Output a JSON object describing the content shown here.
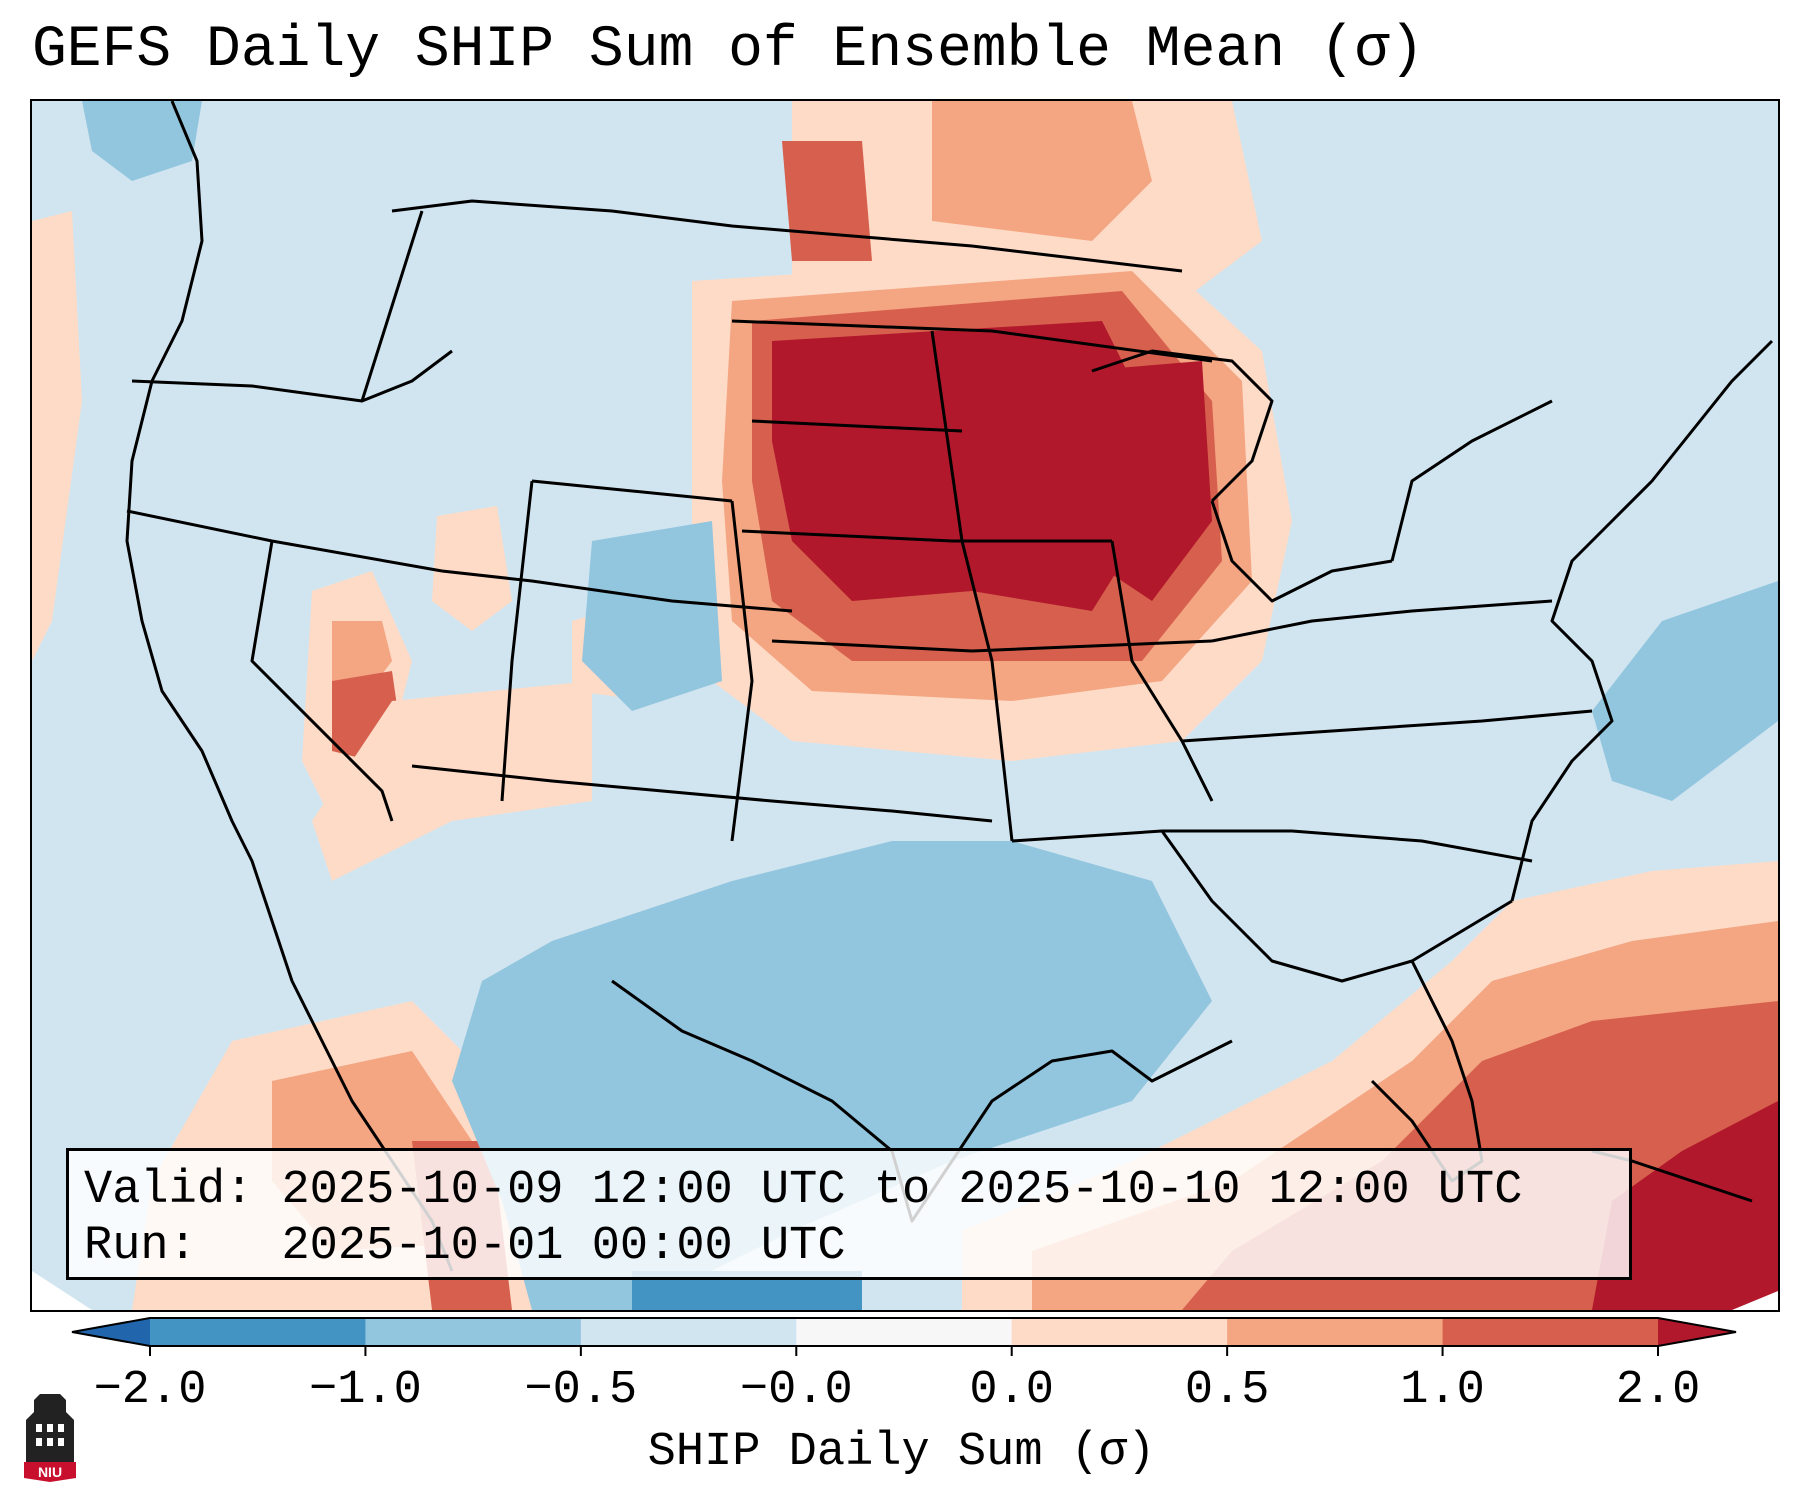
{
  "title": "GEFS Daily SHIP Sum of Ensemble Mean (σ)",
  "info": {
    "valid_label": "Valid:",
    "valid_value": "2025-10-09 12:00 UTC to 2025-10-10 12:00 UTC",
    "run_label": "Run:",
    "run_value": "2025-10-01 00:00 UTC"
  },
  "colorbar": {
    "label": "SHIP Daily Sum (σ)",
    "ticks": [
      "−2.0",
      "−1.0",
      "−0.5",
      "−0.0",
      "0.0",
      "0.5",
      "1.0",
      "2.0"
    ],
    "bins": [
      {
        "range": "< -2.0",
        "color": "#2166ac"
      },
      {
        "range": "-2.0 to -1.0",
        "color": "#4393c3"
      },
      {
        "range": "-1.0 to -0.5",
        "color": "#92c5de"
      },
      {
        "range": "-0.5 to -0.0",
        "color": "#d1e5f0"
      },
      {
        "range": "-0.0 to 0.0",
        "color": "#f7f7f7"
      },
      {
        "range": "0.0 to 0.5",
        "color": "#fddbc7"
      },
      {
        "range": "0.5 to 1.0",
        "color": "#f4a582"
      },
      {
        "range": "1.0 to 2.0",
        "color": "#d6604d"
      },
      {
        "range": "> 2.0",
        "color": "#b2182b"
      }
    ]
  },
  "map": {
    "region": "Contiguous United States",
    "field": "SHIP daily sum anomaly",
    "features": {
      "strong-positive": "Northern and central Plains, Upper Midwest",
      "positive": "Florida, western Atlantic, Caribbean",
      "negative": "Texas, Gulf of Mexico, Southwest"
    }
  },
  "logo": {
    "text": "NIU"
  }
}
